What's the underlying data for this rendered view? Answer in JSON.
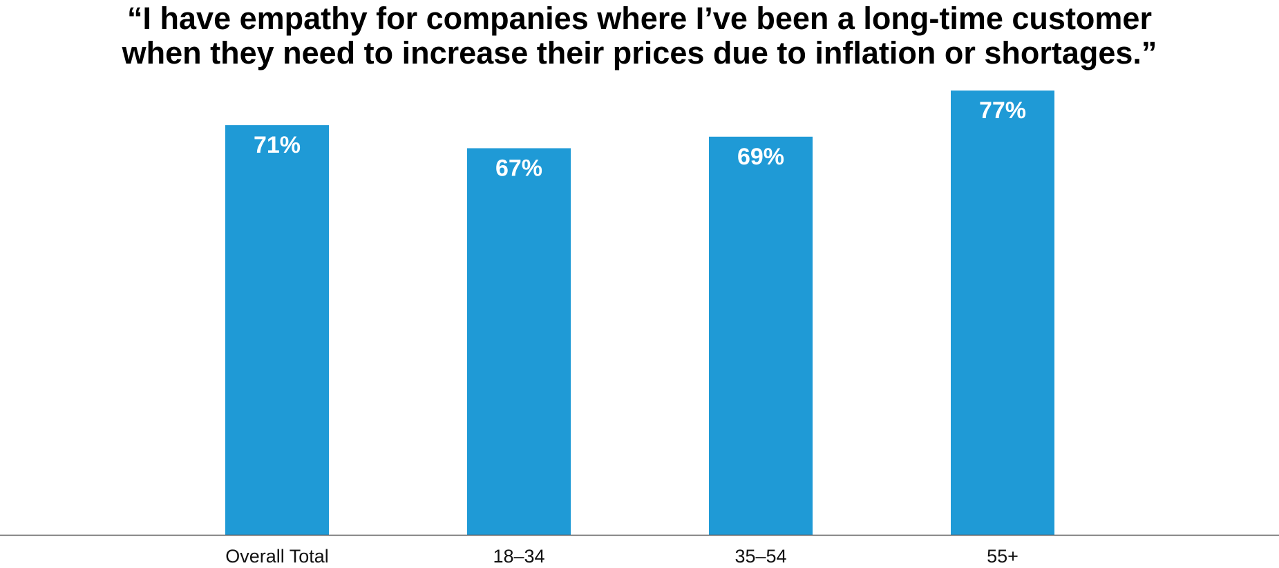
{
  "chart_data": {
    "type": "bar",
    "title": "“I have empathy for companies where I’ve been a long-time customer when they need to increase their prices due to inflation or shortages.”",
    "title_lines": [
      "“I have empathy for companies where I’ve been a long-time customer",
      "when they need to increase their prices due to inflation or shortages.”"
    ],
    "categories": [
      "Overall Total",
      "18–34",
      "35–54",
      "55+"
    ],
    "values": [
      71,
      67,
      69,
      77
    ],
    "value_labels": [
      "71%",
      "67%",
      "69%",
      "77%"
    ],
    "xlabel": "",
    "ylabel": "",
    "ylim": [
      0,
      77
    ],
    "grid": false,
    "legend": "none",
    "bar_color": "#1f9ad6",
    "axis_color": "#555555"
  }
}
